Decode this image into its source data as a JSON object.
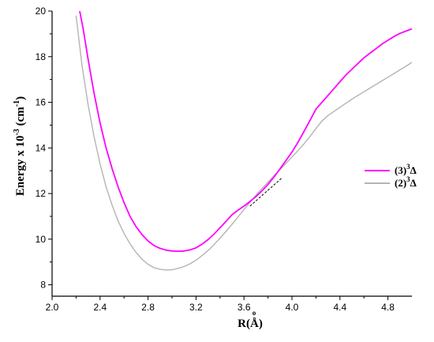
{
  "chart_data": {
    "type": "line",
    "title": "",
    "xlabel": "R(Å)",
    "xlabel_accent": "o",
    "ylabel": "Energy x 10",
    "ylabel_exponent": "-3",
    "ylabel_unit": " (cm",
    "ylabel_unit_exponent": "-1",
    "ylabel_close": ")",
    "xlim": [
      2.0,
      5.0
    ],
    "ylim": [
      7.5,
      20
    ],
    "x_ticks": [
      "2.0",
      "2.4",
      "2.8",
      "3.2",
      "3.6",
      "4.0",
      "4.4",
      "4.8"
    ],
    "y_ticks": [
      "8",
      "10",
      "12",
      "14",
      "16",
      "18",
      "20"
    ],
    "grid": false,
    "legend_position": "right",
    "series": [
      {
        "name_prefix": "(3)",
        "name_sup": "3",
        "name_sym": "Δ",
        "color": "#ff00ff",
        "x": [
          2.23,
          2.26,
          2.3,
          2.35,
          2.4,
          2.45,
          2.5,
          2.55,
          2.6,
          2.65,
          2.7,
          2.75,
          2.8,
          2.85,
          2.9,
          2.95,
          3.0,
          3.05,
          3.1,
          3.15,
          3.2,
          3.25,
          3.3,
          3.35,
          3.4,
          3.45,
          3.5,
          3.55,
          3.6,
          3.65,
          3.7,
          3.75,
          3.8,
          3.85,
          3.9,
          3.95,
          4.0,
          4.05,
          4.1,
          4.15,
          4.2,
          4.25,
          4.3,
          4.35,
          4.4,
          4.45,
          4.5,
          4.55,
          4.6,
          4.65,
          4.7,
          4.75,
          4.8,
          4.85,
          4.9,
          4.95,
          5.0
        ],
        "y": [
          20.0,
          19.2,
          17.9,
          16.4,
          15.1,
          14.0,
          13.1,
          12.3,
          11.6,
          11.0,
          10.55,
          10.2,
          9.92,
          9.72,
          9.6,
          9.52,
          9.48,
          9.47,
          9.48,
          9.53,
          9.62,
          9.78,
          9.98,
          10.22,
          10.5,
          10.78,
          11.07,
          11.27,
          11.45,
          11.65,
          11.87,
          12.12,
          12.4,
          12.72,
          13.08,
          13.45,
          13.82,
          14.25,
          14.72,
          15.2,
          15.7,
          16.0,
          16.3,
          16.6,
          16.9,
          17.2,
          17.45,
          17.7,
          17.95,
          18.15,
          18.35,
          18.55,
          18.72,
          18.88,
          19.02,
          19.12,
          19.22
        ]
      },
      {
        "name_prefix": "(2)",
        "name_sup": "3",
        "name_sym": "Δ",
        "color": "#b4b4b4",
        "x": [
          2.2,
          2.25,
          2.3,
          2.35,
          2.4,
          2.45,
          2.5,
          2.55,
          2.6,
          2.65,
          2.7,
          2.75,
          2.8,
          2.85,
          2.9,
          2.95,
          3.0,
          3.05,
          3.1,
          3.15,
          3.2,
          3.25,
          3.3,
          3.35,
          3.4,
          3.45,
          3.5,
          3.55,
          3.6,
          3.65,
          3.7,
          3.75,
          3.8,
          3.85,
          3.9,
          3.95,
          4.0,
          4.05,
          4.1,
          4.15,
          4.2,
          4.25,
          4.3,
          4.35,
          4.4,
          4.45,
          4.5,
          4.55,
          4.6,
          4.65,
          4.7,
          4.75,
          4.8,
          4.85,
          4.9,
          4.95,
          5.0
        ],
        "y": [
          19.8,
          17.6,
          15.9,
          14.5,
          13.3,
          12.3,
          11.5,
          10.8,
          10.25,
          9.8,
          9.42,
          9.12,
          8.9,
          8.75,
          8.68,
          8.65,
          8.66,
          8.72,
          8.8,
          8.92,
          9.08,
          9.28,
          9.5,
          9.76,
          10.04,
          10.34,
          10.65,
          10.97,
          11.3,
          11.62,
          11.93,
          12.22,
          12.5,
          12.78,
          13.05,
          13.32,
          13.6,
          13.88,
          14.18,
          14.5,
          14.85,
          15.18,
          15.42,
          15.6,
          15.78,
          15.96,
          16.14,
          16.3,
          16.46,
          16.62,
          16.78,
          16.94,
          17.1,
          17.26,
          17.42,
          17.58,
          17.75
        ]
      }
    ],
    "annotation_segment": {
      "style": "dashed",
      "x": [
        3.65,
        3.92
      ],
      "y": [
        11.45,
        12.7
      ]
    }
  }
}
